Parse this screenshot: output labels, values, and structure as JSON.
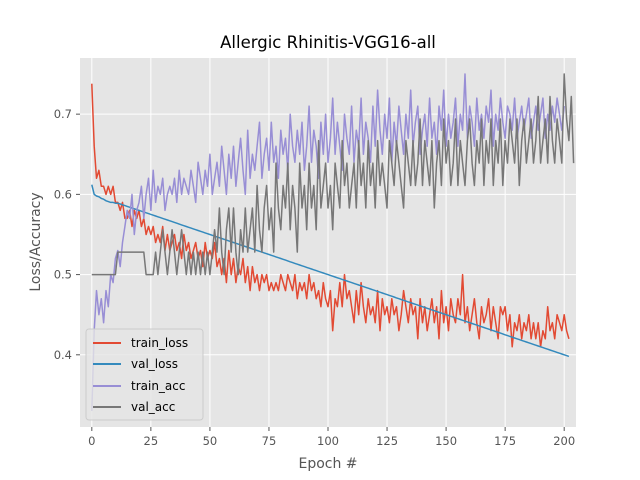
{
  "chart_data": {
    "type": "line",
    "title": "Allergic Rhinitis-VGG16-all",
    "xlabel": "Epoch #",
    "ylabel": "Loss/Accuracy",
    "xlim": [
      -5,
      205
    ],
    "ylim": [
      0.31,
      0.77
    ],
    "xticks": [
      0,
      25,
      50,
      75,
      100,
      125,
      150,
      175,
      200
    ],
    "yticks": [
      0.4,
      0.5,
      0.6,
      0.7
    ],
    "grid": true,
    "legend_position": "lower-left",
    "series": [
      {
        "name": "train_loss",
        "color": "#E24A33",
        "values": [
          0.738,
          0.66,
          0.62,
          0.63,
          0.61,
          0.61,
          0.6,
          0.61,
          0.6,
          0.61,
          0.59,
          0.59,
          0.58,
          0.59,
          0.57,
          0.57,
          0.58,
          0.56,
          0.58,
          0.57,
          0.58,
          0.56,
          0.57,
          0.55,
          0.56,
          0.55,
          0.56,
          0.54,
          0.55,
          0.54,
          0.56,
          0.53,
          0.55,
          0.53,
          0.54,
          0.55,
          0.53,
          0.54,
          0.52,
          0.55,
          0.53,
          0.54,
          0.52,
          0.53,
          0.54,
          0.52,
          0.53,
          0.51,
          0.54,
          0.52,
          0.53,
          0.52,
          0.54,
          0.51,
          0.52,
          0.5,
          0.52,
          0.49,
          0.53,
          0.5,
          0.52,
          0.49,
          0.51,
          0.5,
          0.52,
          0.49,
          0.51,
          0.48,
          0.51,
          0.49,
          0.5,
          0.48,
          0.5,
          0.49,
          0.5,
          0.48,
          0.49,
          0.48,
          0.49,
          0.48,
          0.5,
          0.49,
          0.48,
          0.5,
          0.49,
          0.48,
          0.5,
          0.47,
          0.49,
          0.48,
          0.49,
          0.47,
          0.5,
          0.48,
          0.49,
          0.47,
          0.48,
          0.46,
          0.49,
          0.47,
          0.46,
          0.48,
          0.43,
          0.47,
          0.46,
          0.49,
          0.46,
          0.5,
          0.47,
          0.48,
          0.46,
          0.44,
          0.48,
          0.45,
          0.49,
          0.46,
          0.44,
          0.47,
          0.45,
          0.46,
          0.44,
          0.48,
          0.43,
          0.47,
          0.45,
          0.46,
          0.44,
          0.47,
          0.45,
          0.46,
          0.43,
          0.45,
          0.48,
          0.46,
          0.44,
          0.47,
          0.45,
          0.46,
          0.42,
          0.47,
          0.44,
          0.46,
          0.43,
          0.45,
          0.47,
          0.44,
          0.46,
          0.42,
          0.48,
          0.44,
          0.46,
          0.43,
          0.47,
          0.45,
          0.44,
          0.47,
          0.45,
          0.5,
          0.44,
          0.46,
          0.43,
          0.45,
          0.47,
          0.44,
          0.42,
          0.46,
          0.44,
          0.45,
          0.47,
          0.43,
          0.46,
          0.44,
          0.42,
          0.46,
          0.45,
          0.46,
          0.43,
          0.45,
          0.41,
          0.44,
          0.43,
          0.45,
          0.42,
          0.44,
          0.43,
          0.45,
          0.42,
          0.44,
          0.42,
          0.44,
          0.41,
          0.43,
          0.42,
          0.46,
          0.43,
          0.44,
          0.42,
          0.45,
          0.44,
          0.43,
          0.45,
          0.43,
          0.42
        ]
      },
      {
        "name": "val_loss",
        "color": "#348ABD",
        "values": [
          0.612,
          0.6,
          0.598,
          0.597,
          0.595,
          0.594,
          0.592,
          0.591,
          0.59,
          0.59,
          0.589,
          0.589,
          0.588,
          0.587,
          0.586,
          0.585,
          0.584,
          0.583,
          0.582,
          0.581,
          0.58,
          0.579,
          0.578,
          0.577,
          0.576,
          0.575,
          0.574,
          0.573,
          0.572,
          0.571,
          0.57,
          0.569,
          0.568,
          0.567,
          0.566,
          0.565,
          0.564,
          0.563,
          0.562,
          0.561,
          0.56,
          0.559,
          0.558,
          0.557,
          0.556,
          0.555,
          0.554,
          0.553,
          0.552,
          0.551,
          0.55,
          0.549,
          0.548,
          0.547,
          0.546,
          0.545,
          0.544,
          0.543,
          0.542,
          0.541,
          0.54,
          0.539,
          0.538,
          0.537,
          0.536,
          0.535,
          0.534,
          0.533,
          0.532,
          0.531,
          0.53,
          0.529,
          0.528,
          0.527,
          0.526,
          0.525,
          0.524,
          0.523,
          0.522,
          0.521,
          0.52,
          0.519,
          0.518,
          0.517,
          0.516,
          0.515,
          0.514,
          0.513,
          0.512,
          0.511,
          0.51,
          0.509,
          0.508,
          0.507,
          0.506,
          0.505,
          0.504,
          0.503,
          0.502,
          0.501,
          0.5,
          0.499,
          0.498,
          0.497,
          0.496,
          0.495,
          0.494,
          0.493,
          0.492,
          0.491,
          0.49,
          0.489,
          0.488,
          0.487,
          0.486,
          0.485,
          0.484,
          0.483,
          0.482,
          0.481,
          0.48,
          0.479,
          0.478,
          0.477,
          0.476,
          0.475,
          0.474,
          0.473,
          0.472,
          0.471,
          0.47,
          0.469,
          0.468,
          0.467,
          0.466,
          0.465,
          0.464,
          0.463,
          0.462,
          0.461,
          0.46,
          0.459,
          0.458,
          0.457,
          0.456,
          0.455,
          0.454,
          0.453,
          0.452,
          0.451,
          0.45,
          0.449,
          0.448,
          0.447,
          0.446,
          0.445,
          0.444,
          0.443,
          0.442,
          0.441,
          0.44,
          0.439,
          0.438,
          0.437,
          0.436,
          0.435,
          0.434,
          0.433,
          0.432,
          0.431,
          0.43,
          0.429,
          0.428,
          0.427,
          0.426,
          0.425,
          0.424,
          0.423,
          0.422,
          0.421,
          0.42,
          0.419,
          0.418,
          0.417,
          0.416,
          0.415,
          0.414,
          0.413,
          0.412,
          0.411,
          0.41,
          0.409,
          0.408,
          0.407,
          0.406,
          0.405,
          0.404,
          0.403,
          0.402,
          0.401,
          0.4,
          0.399,
          0.398
        ]
      },
      {
        "name": "train_acc",
        "color": "#988ED5",
        "values": [
          0.33,
          0.43,
          0.48,
          0.45,
          0.47,
          0.44,
          0.48,
          0.46,
          0.5,
          0.49,
          0.52,
          0.53,
          0.51,
          0.54,
          0.56,
          0.58,
          0.57,
          0.6,
          0.55,
          0.58,
          0.59,
          0.61,
          0.57,
          0.6,
          0.62,
          0.58,
          0.63,
          0.59,
          0.61,
          0.6,
          0.62,
          0.58,
          0.6,
          0.61,
          0.6,
          0.62,
          0.59,
          0.63,
          0.6,
          0.62,
          0.61,
          0.6,
          0.63,
          0.61,
          0.59,
          0.64,
          0.62,
          0.6,
          0.63,
          0.61,
          0.65,
          0.6,
          0.62,
          0.64,
          0.61,
          0.66,
          0.63,
          0.6,
          0.65,
          0.62,
          0.66,
          0.61,
          0.64,
          0.67,
          0.63,
          0.6,
          0.68,
          0.62,
          0.65,
          0.63,
          0.66,
          0.69,
          0.62,
          0.65,
          0.67,
          0.63,
          0.69,
          0.64,
          0.66,
          0.62,
          0.68,
          0.65,
          0.67,
          0.63,
          0.7,
          0.66,
          0.64,
          0.68,
          0.65,
          0.69,
          0.63,
          0.66,
          0.71,
          0.64,
          0.68,
          0.66,
          0.62,
          0.69,
          0.65,
          0.7,
          0.64,
          0.67,
          0.72,
          0.65,
          0.69,
          0.66,
          0.63,
          0.7,
          0.67,
          0.65,
          0.71,
          0.64,
          0.68,
          0.66,
          0.72,
          0.65,
          0.69,
          0.67,
          0.64,
          0.71,
          0.66,
          0.73,
          0.68,
          0.65,
          0.7,
          0.67,
          0.72,
          0.64,
          0.69,
          0.66,
          0.71,
          0.68,
          0.65,
          0.7,
          0.67,
          0.73,
          0.66,
          0.69,
          0.71,
          0.65,
          0.68,
          0.7,
          0.66,
          0.72,
          0.67,
          0.69,
          0.65,
          0.71,
          0.68,
          0.73,
          0.66,
          0.7,
          0.67,
          0.69,
          0.72,
          0.66,
          0.7,
          0.68,
          0.75,
          0.67,
          0.71,
          0.69,
          0.66,
          0.72,
          0.68,
          0.7,
          0.67,
          0.71,
          0.69,
          0.73,
          0.66,
          0.7,
          0.68,
          0.72,
          0.69,
          0.67,
          0.71,
          0.7,
          0.68,
          0.72,
          0.67,
          0.69,
          0.71,
          0.68,
          0.7,
          0.72,
          0.67,
          0.69,
          0.71,
          0.68,
          0.7,
          0.72,
          0.67,
          0.7,
          0.68,
          0.71,
          0.69,
          0.72,
          0.7,
          0.68,
          0.71
        ]
      },
      {
        "name": "val_acc",
        "color": "#777777",
        "values": [
          0.5,
          0.5,
          0.5,
          0.5,
          0.5,
          0.5,
          0.5,
          0.5,
          0.5,
          0.5,
          0.5,
          0.528,
          0.528,
          0.528,
          0.528,
          0.528,
          0.528,
          0.528,
          0.528,
          0.528,
          0.528,
          0.528,
          0.528,
          0.5,
          0.5,
          0.5,
          0.5,
          0.528,
          0.5,
          0.528,
          0.556,
          0.528,
          0.5,
          0.528,
          0.556,
          0.528,
          0.5,
          0.528,
          0.556,
          0.528,
          0.5,
          0.528,
          0.5,
          0.528,
          0.5,
          0.528,
          0.5,
          0.528,
          0.5,
          0.528,
          0.5,
          0.528,
          0.556,
          0.528,
          0.583,
          0.528,
          0.5,
          0.556,
          0.583,
          0.528,
          0.583,
          0.528,
          0.5,
          0.556,
          0.528,
          0.583,
          0.528,
          0.556,
          0.583,
          0.528,
          0.611,
          0.556,
          0.528,
          0.583,
          0.611,
          0.556,
          0.583,
          0.528,
          0.639,
          0.583,
          0.556,
          0.611,
          0.583,
          0.639,
          0.556,
          0.611,
          0.583,
          0.528,
          0.639,
          0.583,
          0.611,
          0.556,
          0.639,
          0.583,
          0.611,
          0.556,
          0.667,
          0.583,
          0.611,
          0.639,
          0.583,
          0.611,
          0.556,
          0.639,
          0.611,
          0.583,
          0.667,
          0.611,
          0.639,
          0.583,
          0.611,
          0.639,
          0.583,
          0.667,
          0.611,
          0.639,
          0.583,
          0.667,
          0.611,
          0.639,
          0.583,
          0.667,
          0.611,
          0.639,
          0.611,
          0.583,
          0.667,
          0.639,
          0.611,
          0.667,
          0.639,
          0.611,
          0.583,
          0.667,
          0.639,
          0.611,
          0.667,
          0.611,
          0.639,
          0.694,
          0.611,
          0.667,
          0.639,
          0.611,
          0.667,
          0.583,
          0.639,
          0.667,
          0.611,
          0.694,
          0.639,
          0.667,
          0.611,
          0.639,
          0.694,
          0.611,
          0.667,
          0.639,
          0.611,
          0.667,
          0.694,
          0.639,
          0.611,
          0.667,
          0.639,
          0.694,
          0.611,
          0.667,
          0.639,
          0.694,
          0.611,
          0.667,
          0.639,
          0.694,
          0.611,
          0.667,
          0.639,
          0.694,
          0.667,
          0.639,
          0.694,
          0.611,
          0.667,
          0.694,
          0.639,
          0.667,
          0.694,
          0.639,
          0.667,
          0.722,
          0.639,
          0.667,
          0.694,
          0.639,
          0.722,
          0.667,
          0.639,
          0.694,
          0.667,
          0.639,
          0.75,
          0.694,
          0.667,
          0.722,
          0.639
        ]
      }
    ]
  }
}
